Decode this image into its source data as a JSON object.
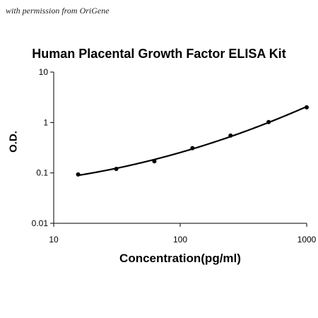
{
  "watermark": "with permission from OriGene",
  "chart_data": {
    "type": "scatter",
    "title": "Human Placental Growth Factor ELISA Kit",
    "xlabel": "Concentration(pg/ml)",
    "ylabel": "O.D.",
    "x_scale": "log",
    "y_scale": "log",
    "xlim": [
      10,
      1000
    ],
    "ylim": [
      0.01,
      10
    ],
    "x_ticks": [
      10,
      100,
      1000
    ],
    "x_tick_labels": [
      "10",
      "100",
      "1000"
    ],
    "y_ticks": [
      0.01,
      0.1,
      1,
      10
    ],
    "y_tick_labels": [
      "0.01",
      "0.1",
      "1",
      "10"
    ],
    "grid": false,
    "legend": "none",
    "series": [
      {
        "x": [
          15.6,
          31.25,
          62.5,
          125,
          250,
          500,
          1000
        ],
        "y": [
          0.093,
          0.12,
          0.17,
          0.31,
          0.55,
          1.02,
          2.0
        ],
        "fit_curve": true,
        "color": "#000000"
      }
    ]
  }
}
